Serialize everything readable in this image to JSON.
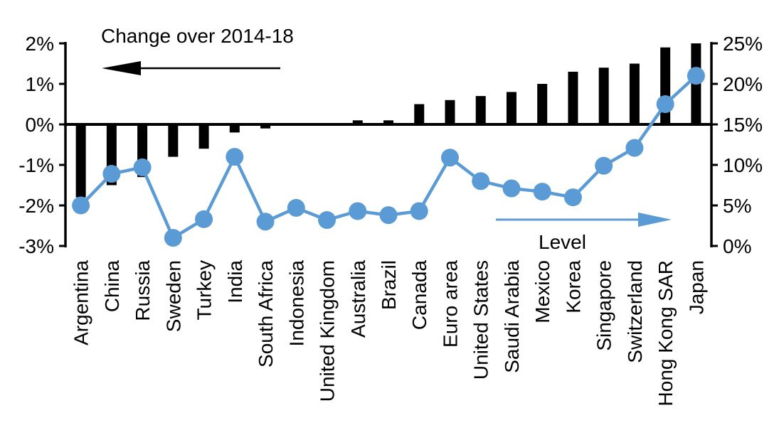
{
  "annotations": {
    "change_title": "Change over 2014-18",
    "level_label": "Level"
  },
  "colors": {
    "bar": "#000000",
    "line": "#5b9bd5",
    "axis": "#000000",
    "text": "#000000",
    "background": "#ffffff"
  },
  "chart_data": {
    "type": "combo",
    "subtype": "bar+line-two-axes",
    "title": "",
    "xlabel": "",
    "ylabel_left": "Change over 2014-18",
    "ylabel_right": "Level",
    "grid": false,
    "legend_position": "in-plot-arrow-annotations",
    "categories": [
      "Argentina",
      "China",
      "Russia",
      "Sweden",
      "Turkey",
      "India",
      "South Africa",
      "Indonesia",
      "United Kingdom",
      "Australia",
      "Brazil",
      "Canada",
      "Euro area",
      "United States",
      "Saudi Arabia",
      "Mexico",
      "Korea",
      "Singapore",
      "Switzerland",
      "Hong Kong SAR",
      "Japan"
    ],
    "series": [
      {
        "name": "Change over 2014-18",
        "type": "bar",
        "axis": "left",
        "color": "#000000",
        "values": [
          -1.8,
          -1.5,
          -1.3,
          -0.8,
          -0.6,
          -0.2,
          -0.1,
          0.0,
          0.0,
          0.1,
          0.1,
          0.5,
          0.6,
          0.7,
          0.8,
          1.0,
          1.3,
          1.4,
          1.5,
          1.9,
          2.0
        ]
      },
      {
        "name": "Level",
        "type": "line",
        "axis": "right",
        "color": "#5b9bd5",
        "values": [
          5.0,
          8.9,
          9.7,
          1.0,
          3.3,
          11.0,
          3.0,
          4.7,
          3.2,
          4.3,
          3.8,
          4.3,
          10.9,
          8.0,
          7.1,
          6.7,
          6.0,
          9.9,
          12.1,
          17.5,
          21.0
        ]
      }
    ],
    "left_axis": {
      "ylim": [
        -3,
        2
      ],
      "tick_values": [
        2,
        1,
        0,
        -1,
        -2,
        -3
      ],
      "tick_labels": [
        "2%",
        "1%",
        "0%",
        "-1%",
        "-2%",
        "-3%"
      ]
    },
    "right_axis": {
      "ylim": [
        0,
        25
      ],
      "tick_values": [
        25,
        20,
        15,
        10,
        5,
        0
      ],
      "tick_labels": [
        "25%",
        "20%",
        "15%",
        "10%",
        "5%",
        "0%"
      ]
    }
  }
}
